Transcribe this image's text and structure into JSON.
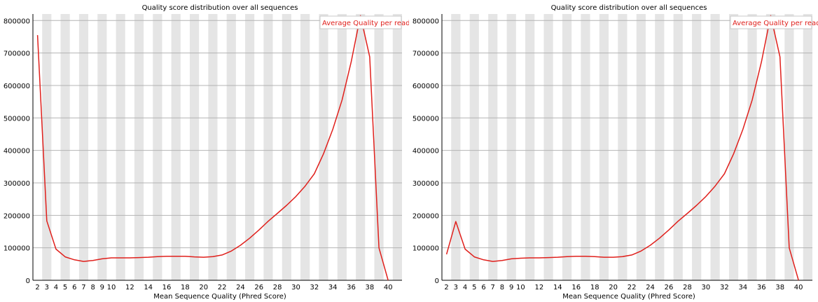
{
  "chart_data": [
    {
      "type": "line",
      "title": "Quality score distribution over all sequences",
      "xlabel": "Mean Sequence Quality (Phred Score)",
      "ylabel": "",
      "legend": "Average Quality per read",
      "legend_position": "top-right",
      "xlim": [
        1.5,
        41.5
      ],
      "ylim": [
        0,
        820000
      ],
      "yticks": [
        0,
        100000,
        200000,
        300000,
        400000,
        500000,
        600000,
        700000,
        800000
      ],
      "ytick_labels": [
        "0",
        "100000",
        "200000",
        "300000",
        "400000",
        "500000",
        "600000",
        "700000",
        "800000"
      ],
      "xticks": [
        2,
        3,
        4,
        5,
        6,
        7,
        8,
        9,
        10,
        12,
        14,
        16,
        18,
        20,
        22,
        24,
        26,
        28,
        30,
        32,
        34,
        36,
        38,
        40
      ],
      "xtick_labels": [
        "2",
        "3",
        "4",
        "5",
        "6",
        "7",
        "8",
        "9",
        "10",
        "12",
        "14",
        "16",
        "18",
        "20",
        "22",
        "24",
        "26",
        "28",
        "30",
        "32",
        "34",
        "36",
        "38",
        "40"
      ],
      "series": [
        {
          "name": "Average Quality per read",
          "color": "#e0201c",
          "x": [
            2,
            3,
            4,
            5,
            6,
            7,
            8,
            9,
            10,
            11,
            12,
            13,
            14,
            15,
            16,
            17,
            18,
            19,
            20,
            21,
            22,
            23,
            24,
            25,
            26,
            27,
            28,
            29,
            30,
            31,
            32,
            33,
            34,
            35,
            36,
            37,
            38,
            39,
            40
          ],
          "y": [
            755000,
            183000,
            96000,
            72000,
            63000,
            58000,
            61000,
            66000,
            69000,
            69000,
            69000,
            70000,
            71000,
            73000,
            74000,
            74000,
            74000,
            72000,
            71000,
            73000,
            78000,
            90000,
            108000,
            130000,
            155000,
            182000,
            206000,
            231000,
            258000,
            290000,
            328000,
            390000,
            465000,
            555000,
            673000,
            815000,
            688000,
            100000,
            0
          ]
        }
      ],
      "grid": true,
      "background_stripes": "alternating grey/white columns per quality score"
    },
    {
      "type": "line",
      "title": "Quality score distribution over all sequences",
      "xlabel": "Mean Sequence Quality (Phred Score)",
      "ylabel": "",
      "legend": "Average Quality per read",
      "legend_position": "top-right",
      "xlim": [
        1.5,
        41.5
      ],
      "ylim": [
        0,
        820000
      ],
      "yticks": [
        0,
        100000,
        200000,
        300000,
        400000,
        500000,
        600000,
        700000,
        800000
      ],
      "ytick_labels": [
        "0",
        "100000",
        "200000",
        "300000",
        "400000",
        "500000",
        "600000",
        "700000",
        "800000"
      ],
      "xticks": [
        2,
        3,
        4,
        5,
        6,
        7,
        8,
        9,
        10,
        12,
        14,
        16,
        18,
        20,
        22,
        24,
        26,
        28,
        30,
        32,
        34,
        36,
        38,
        40
      ],
      "xtick_labels": [
        "2",
        "3",
        "4",
        "5",
        "6",
        "7",
        "8",
        "9",
        "10",
        "12",
        "14",
        "16",
        "18",
        "20",
        "22",
        "24",
        "26",
        "28",
        "30",
        "32",
        "34",
        "36",
        "38",
        "40"
      ],
      "series": [
        {
          "name": "Average Quality per read",
          "color": "#e0201c",
          "x": [
            2,
            3,
            4,
            5,
            6,
            7,
            8,
            9,
            10,
            11,
            12,
            13,
            14,
            15,
            16,
            17,
            18,
            19,
            20,
            21,
            22,
            23,
            24,
            25,
            26,
            27,
            28,
            29,
            30,
            31,
            32,
            33,
            34,
            35,
            36,
            37,
            38,
            39,
            40
          ],
          "y": [
            80000,
            181000,
            96000,
            72000,
            63000,
            58000,
            61000,
            66000,
            68000,
            69000,
            69000,
            70000,
            71000,
            73000,
            74000,
            74000,
            73000,
            71000,
            71000,
            73000,
            78000,
            90000,
            108000,
            130000,
            155000,
            182000,
            206000,
            231000,
            258000,
            290000,
            328000,
            390000,
            465000,
            555000,
            673000,
            815000,
            688000,
            100000,
            0
          ]
        }
      ],
      "grid": true,
      "background_stripes": "alternating grey/white columns per quality score"
    }
  ]
}
